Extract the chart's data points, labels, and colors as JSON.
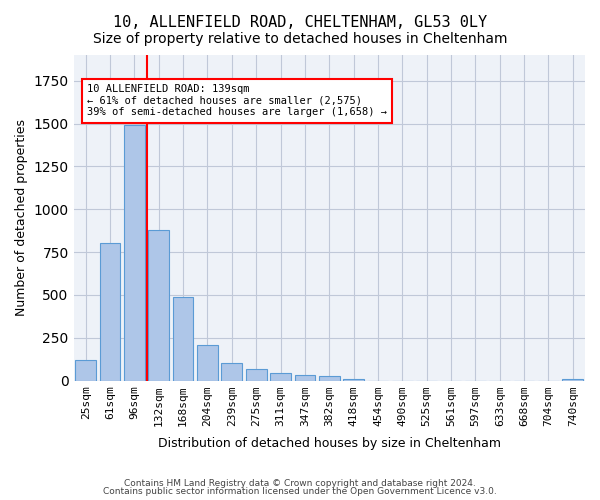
{
  "title_line1": "10, ALLENFIELD ROAD, CHELTENHAM, GL53 0LY",
  "title_line2": "Size of property relative to detached houses in Cheltenham",
  "xlabel": "Distribution of detached houses by size in Cheltenham",
  "ylabel": "Number of detached properties",
  "categories": [
    "25sqm",
    "61sqm",
    "96sqm",
    "132sqm",
    "168sqm",
    "204sqm",
    "239sqm",
    "275sqm",
    "311sqm",
    "347sqm",
    "382sqm",
    "418sqm",
    "454sqm",
    "490sqm",
    "525sqm",
    "561sqm",
    "597sqm",
    "633sqm",
    "668sqm",
    "704sqm",
    "740sqm"
  ],
  "values": [
    120,
    800,
    1490,
    880,
    490,
    205,
    105,
    65,
    42,
    33,
    25,
    10,
    0,
    0,
    0,
    0,
    0,
    0,
    0,
    0,
    10
  ],
  "bar_color": "#aec6e8",
  "bar_edge_color": "#5b9bd5",
  "vline_x": 2.5,
  "vline_color": "red",
  "annotation_text": "10 ALLENFIELD ROAD: 139sqm\n← 61% of detached houses are smaller (2,575)\n39% of semi-detached houses are larger (1,658) →",
  "annotation_box_color": "white",
  "annotation_box_edge_color": "red",
  "ylim": [
    0,
    1900
  ],
  "footer_line1": "Contains HM Land Registry data © Crown copyright and database right 2024.",
  "footer_line2": "Contains public sector information licensed under the Open Government Licence v3.0.",
  "bg_color": "#eef2f8",
  "grid_color": "#c0c8d8",
  "title_fontsize": 11,
  "subtitle_fontsize": 10,
  "tick_fontsize": 8,
  "ylabel_fontsize": 9,
  "xlabel_fontsize": 9
}
